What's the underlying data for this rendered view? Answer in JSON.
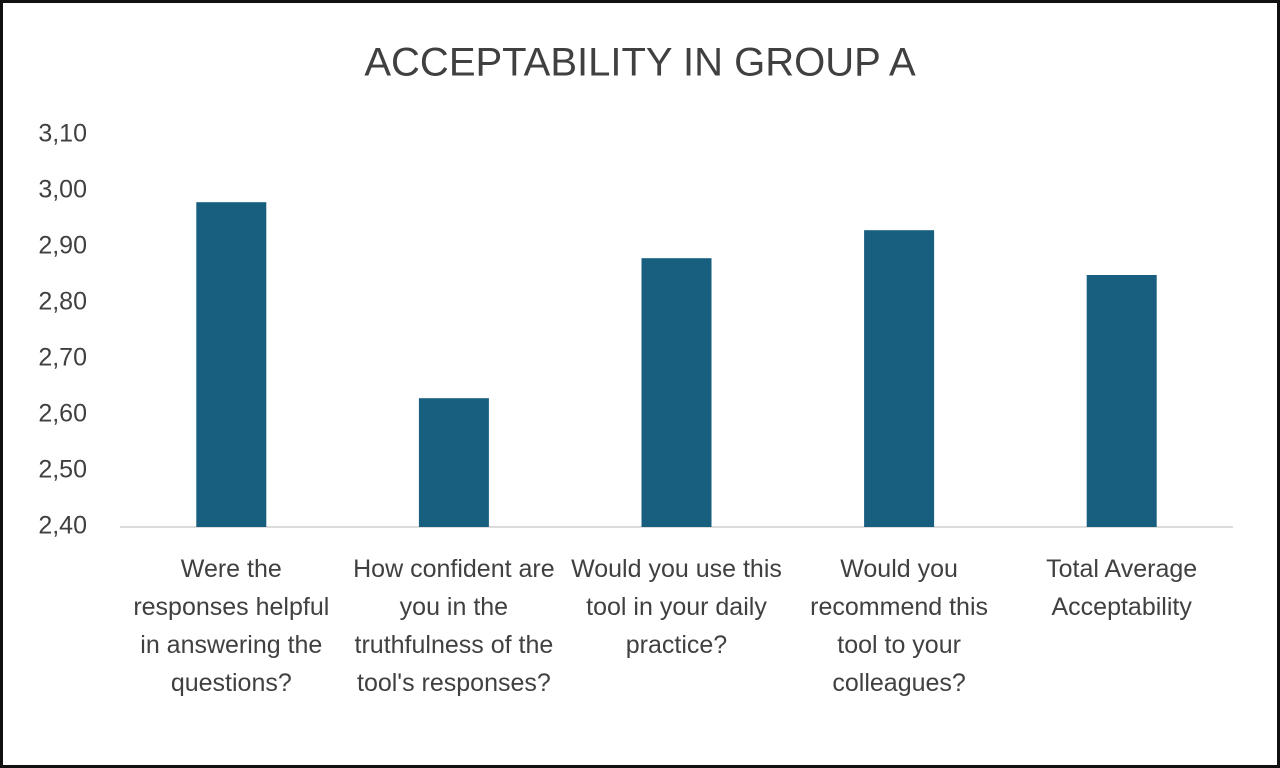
{
  "chart_data": {
    "type": "bar",
    "title": "ACCEPTABILITY IN GROUP A",
    "categories": [
      "Were the responses helpful in answering the questions?",
      "How confident are you in the truthfulness of the tool's responses?",
      "Would you use this tool in your daily practice?",
      "Would you recommend this tool to your colleagues?",
      "Total Average Acceptability"
    ],
    "values": [
      2.98,
      2.63,
      2.88,
      2.93,
      2.85
    ],
    "color": "#175e7f",
    "ylim": [
      2.4,
      3.1
    ],
    "yticks": [
      {
        "value": 2.4,
        "label": "2,40"
      },
      {
        "value": 2.5,
        "label": "2,50"
      },
      {
        "value": 2.6,
        "label": "2,60"
      },
      {
        "value": 2.7,
        "label": "2,70"
      },
      {
        "value": 2.8,
        "label": "2,80"
      },
      {
        "value": 2.9,
        "label": "2,90"
      },
      {
        "value": 3.0,
        "label": "3,00"
      },
      {
        "value": 3.1,
        "label": "3,10"
      }
    ],
    "grid": false
  }
}
